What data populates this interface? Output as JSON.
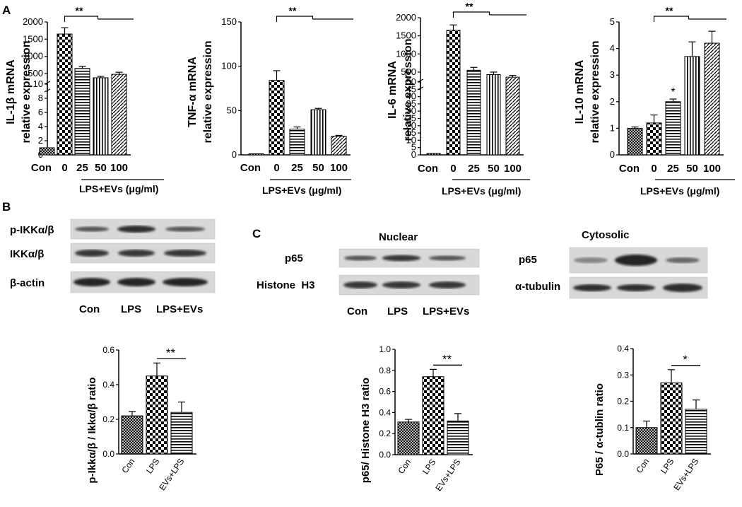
{
  "panel_labels": {
    "A": "A",
    "B": "B",
    "C": "C"
  },
  "group_label": "LPS+EVs (μg/ml)",
  "western_B": {
    "rows": [
      "p-IKKα/β",
      "IKKα/β",
      "β-actin"
    ],
    "lanes": [
      "Con",
      "LPS",
      "LPS+EVs"
    ]
  },
  "western_C": {
    "nuclear_title": "Nuclear",
    "cytosolic_title": "Cytosolic",
    "nuclear_rows": [
      "p65",
      "Histone  H3"
    ],
    "cytosolic_rows": [
      "p65",
      "α-tubulin"
    ],
    "lanes": [
      "Con",
      "LPS",
      "LPS+EVs"
    ]
  },
  "colors": {
    "ink": "#000000",
    "band": "#1a1a1a",
    "blot_bg": "#d8d8d8"
  },
  "chart_data": [
    {
      "id": "il1b",
      "type": "bar",
      "ylabel": [
        "IL-1β mRNA",
        "relative expression"
      ],
      "categories": [
        "Con",
        "0",
        "25",
        "50",
        "100"
      ],
      "values": [
        1.0,
        1650,
        650,
        380,
        480
      ],
      "errors": [
        0.05,
        180,
        60,
        40,
        60
      ],
      "patterns": [
        "cross",
        "check",
        "hlines",
        "vlines",
        "diag"
      ],
      "broken_axis": {
        "lower": [
          0,
          10
        ],
        "upper": [
          10,
          2000
        ]
      },
      "lower_ticks": [
        "0",
        "2",
        "4",
        "6",
        "8",
        "10"
      ],
      "upper_ticks": [
        "500",
        "1000",
        "1500",
        "2000"
      ],
      "annotations": [
        {
          "text": "**",
          "bar": 1
        }
      ]
    },
    {
      "id": "tnfa",
      "type": "bar",
      "ylabel": [
        "TNF-α mRNA",
        "relative expression"
      ],
      "categories": [
        "Con",
        "0",
        "25",
        "50",
        "100"
      ],
      "values": [
        1,
        84,
        29,
        51,
        21
      ],
      "errors": [
        0.3,
        11,
        2.5,
        1.5,
        1
      ],
      "patterns": [
        "cross",
        "check",
        "hlines",
        "vlines",
        "diag"
      ],
      "ylim": [
        0,
        150
      ],
      "ticks": [
        "0",
        "50",
        "100",
        "150"
      ],
      "annotations": [
        {
          "text": "**",
          "bar": 1
        }
      ]
    },
    {
      "id": "il6",
      "type": "bar",
      "ylabel": [
        "IL-6 mRNA",
        "relative expression"
      ],
      "categories": [
        "Con",
        "0",
        "25",
        "50",
        "100"
      ],
      "values": [
        1.0,
        1650,
        550,
        430,
        360
      ],
      "errors": [
        0.05,
        150,
        80,
        70,
        50
      ],
      "patterns": [
        "cross",
        "check",
        "hlines",
        "vlines",
        "diag"
      ],
      "broken_axis": {
        "lower": [
          0,
          50
        ],
        "upper": [
          50,
          2000
        ]
      },
      "lower_ticks": [
        "0",
        "5",
        "10",
        "15",
        "20",
        "25",
        "30",
        "35",
        "40",
        "45",
        "50"
      ],
      "upper_ticks": [
        "500",
        "1000",
        "1500",
        "2000"
      ],
      "annotations": [
        {
          "text": "**",
          "bar": 1
        }
      ]
    },
    {
      "id": "il10",
      "type": "bar",
      "ylabel": [
        "IL-10 mRNA",
        "relative expression"
      ],
      "categories": [
        "Con",
        "0",
        "25",
        "50",
        "100"
      ],
      "values": [
        1.0,
        1.2,
        2.0,
        3.7,
        4.2
      ],
      "errors": [
        0.05,
        0.3,
        0.1,
        0.55,
        0.45
      ],
      "patterns": [
        "cross",
        "check",
        "hlines",
        "vlines",
        "diag"
      ],
      "ylim": [
        0,
        5
      ],
      "ticks": [
        "0",
        "1",
        "2",
        "3",
        "4",
        "5"
      ],
      "annotations": [
        {
          "text": "**",
          "bar": 1
        },
        {
          "text": "*",
          "bar": 2
        }
      ]
    },
    {
      "id": "ikk_ratio",
      "type": "bar",
      "ylabel": [
        "p-Ikkα/β / Ikkα/β ratio"
      ],
      "categories": [
        "Con",
        "LPS",
        "EVs+LPS"
      ],
      "values": [
        0.22,
        0.45,
        0.24
      ],
      "errors": [
        0.025,
        0.075,
        0.06
      ],
      "patterns": [
        "cross",
        "check",
        "hlines"
      ],
      "ylim": [
        0,
        0.6
      ],
      "ticks": [
        "0.0",
        "0.2",
        "0.4",
        "0.6"
      ],
      "annotations": [
        {
          "text": "**",
          "bar": 1
        }
      ]
    },
    {
      "id": "p65_nuclear",
      "type": "bar",
      "ylabel": [
        "p65/ Histone H3 ratio"
      ],
      "categories": [
        "Con",
        "LPS",
        "EVs+LPS"
      ],
      "values": [
        0.31,
        0.74,
        0.32
      ],
      "errors": [
        0.025,
        0.07,
        0.07
      ],
      "patterns": [
        "cross",
        "check",
        "hlines"
      ],
      "ylim": [
        0,
        1.0
      ],
      "ticks": [
        "0.0",
        "0.2",
        "0.4",
        "0.6",
        "0.8",
        "1.0"
      ],
      "annotations": [
        {
          "text": "**",
          "bar": 1
        }
      ]
    },
    {
      "id": "p65_cytosolic",
      "type": "bar",
      "ylabel": [
        "P65 / α-tublin ratio"
      ],
      "categories": [
        "Con",
        "LPS",
        "EVs+LPS"
      ],
      "values": [
        0.1,
        0.27,
        0.17
      ],
      "errors": [
        0.025,
        0.05,
        0.035
      ],
      "patterns": [
        "cross",
        "check",
        "hlines"
      ],
      "ylim": [
        0,
        0.4
      ],
      "ticks": [
        "0.0",
        "0.1",
        "0.2",
        "0.3",
        "0.4"
      ],
      "annotations": [
        {
          "text": "*",
          "bar": 1
        }
      ]
    }
  ]
}
